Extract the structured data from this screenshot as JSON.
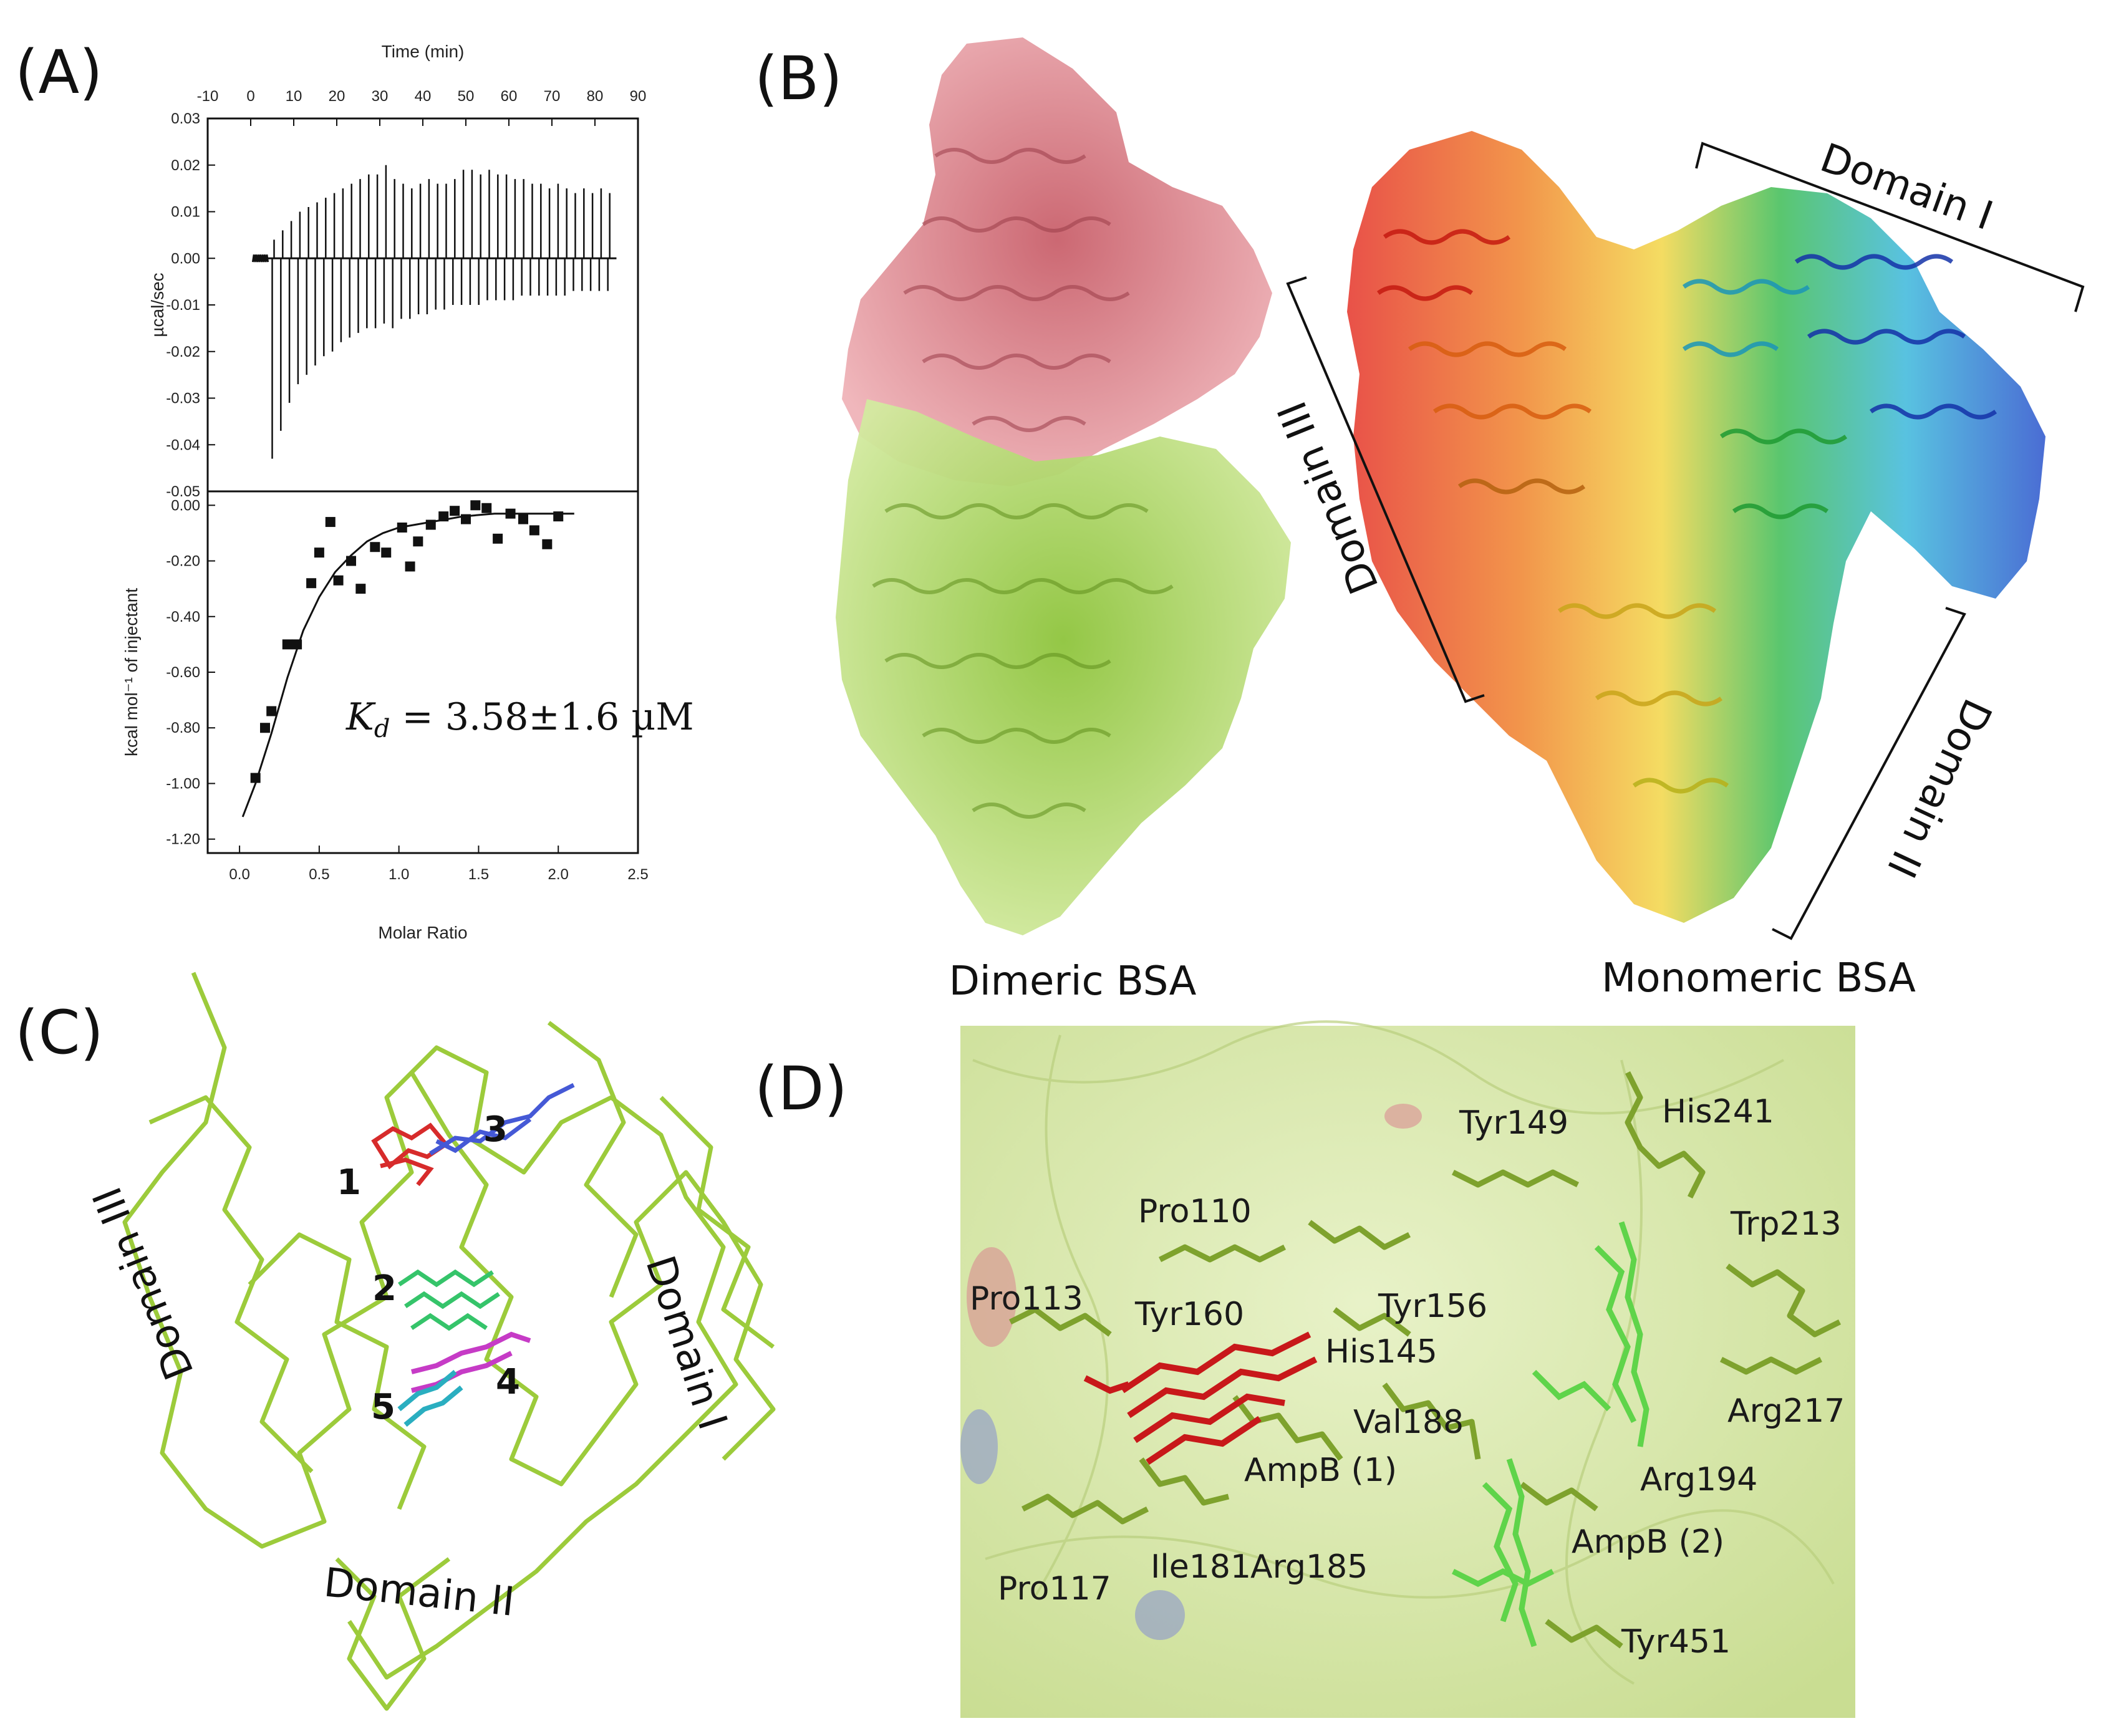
{
  "panels": {
    "a": {
      "label": "(A)"
    },
    "b": {
      "label": "(B)"
    },
    "c": {
      "label": "(C)"
    },
    "d": {
      "label": "(D)"
    }
  },
  "chart_data": [
    {
      "type": "line",
      "panel": "A-top",
      "xlabel": "Time (min)",
      "ylabel": "µcal/sec",
      "xlim": [
        -10,
        90
      ],
      "ylim": [
        -0.05,
        0.03
      ],
      "x_ticks": [
        "-10",
        "0",
        "10",
        "20",
        "30",
        "40",
        "50",
        "60",
        "70",
        "80",
        "90"
      ],
      "y_ticks": [
        "0.03",
        "0.02",
        "0.01",
        "0.00",
        "-0.01",
        "-0.02",
        "-0.03",
        "-0.04",
        "-0.05"
      ],
      "injections": {
        "time": [
          5,
          7,
          9,
          11,
          13,
          15,
          17,
          19,
          21,
          23,
          25,
          27,
          29,
          31,
          33,
          35,
          37,
          39,
          41,
          43,
          45,
          47,
          49,
          51,
          53,
          55,
          57,
          59,
          61,
          63,
          65,
          67,
          69,
          71,
          73,
          75,
          77,
          79,
          81,
          83
        ],
        "peak_down": [
          -0.043,
          -0.037,
          -0.031,
          -0.027,
          -0.025,
          -0.023,
          -0.021,
          -0.02,
          -0.018,
          -0.017,
          -0.016,
          -0.015,
          -0.015,
          -0.014,
          -0.015,
          -0.013,
          -0.013,
          -0.012,
          -0.012,
          -0.011,
          -0.011,
          -0.01,
          -0.01,
          -0.01,
          -0.01,
          -0.009,
          -0.009,
          -0.009,
          -0.009,
          -0.008,
          -0.008,
          -0.008,
          -0.008,
          -0.008,
          -0.008,
          -0.007,
          -0.007,
          -0.007,
          -0.007,
          -0.007
        ],
        "peak_up": [
          0.004,
          0.006,
          0.008,
          0.01,
          0.011,
          0.012,
          0.013,
          0.014,
          0.015,
          0.016,
          0.017,
          0.018,
          0.018,
          0.02,
          0.017,
          0.016,
          0.015,
          0.016,
          0.017,
          0.016,
          0.016,
          0.017,
          0.019,
          0.019,
          0.018,
          0.019,
          0.018,
          0.018,
          0.017,
          0.017,
          0.016,
          0.016,
          0.015,
          0.016,
          0.015,
          0.014,
          0.015,
          0.014,
          0.015,
          0.014
        ]
      }
    },
    {
      "type": "scatter",
      "panel": "A-bottom",
      "xlabel": "Molar Ratio",
      "ylabel": "kcal mol⁻¹ of injectant",
      "xlim": [
        -0.2,
        2.5
      ],
      "ylim": [
        -1.25,
        0.05
      ],
      "x_ticks": [
        "0.0",
        "0.5",
        "1.0",
        "1.5",
        "2.0",
        "2.5"
      ],
      "y_ticks": [
        "0.00",
        "-0.20",
        "-0.40",
        "-0.60",
        "-0.80",
        "-1.00",
        "-1.20"
      ],
      "points": {
        "x": [
          0.1,
          0.16,
          0.2,
          0.3,
          0.36,
          0.45,
          0.5,
          0.57,
          0.62,
          0.7,
          0.76,
          0.85,
          0.92,
          1.02,
          1.07,
          1.12,
          1.2,
          1.28,
          1.35,
          1.42,
          1.48,
          1.55,
          1.62,
          1.7,
          1.78,
          1.85,
          1.93,
          2.0
        ],
        "y": [
          -0.98,
          -0.8,
          -0.74,
          -0.5,
          -0.5,
          -0.28,
          -0.17,
          -0.06,
          -0.27,
          -0.2,
          -0.3,
          -0.15,
          -0.17,
          -0.08,
          -0.22,
          -0.13,
          -0.07,
          -0.04,
          -0.02,
          -0.05,
          0.0,
          -0.01,
          -0.12,
          -0.03,
          -0.05,
          -0.09,
          -0.14,
          -0.04
        ]
      },
      "fit": {
        "x": [
          0.02,
          0.1,
          0.2,
          0.3,
          0.4,
          0.5,
          0.6,
          0.7,
          0.8,
          0.9,
          1.0,
          1.2,
          1.4,
          1.6,
          1.8,
          2.0,
          2.1
        ],
        "y": [
          -1.12,
          -1.0,
          -0.82,
          -0.62,
          -0.45,
          -0.33,
          -0.24,
          -0.18,
          -0.13,
          -0.1,
          -0.08,
          -0.06,
          -0.04,
          -0.03,
          -0.03,
          -0.03,
          -0.03
        ]
      },
      "annotation": {
        "symbol": "K",
        "subscript": "d",
        "text": " = 3.58±1.6 µM"
      }
    }
  ],
  "panel_b": {
    "dimeric_label": "Dimeric BSA",
    "monomeric_label": "Monomeric BSA",
    "domain_1": "Domain I",
    "domain_2": "Domain II",
    "domain_3": "Domain III",
    "colors": {
      "dimer_top": "#d9808a",
      "dimer_bottom": "#a8d257",
      "rainbow": [
        "#e3261b",
        "#ef7b1e",
        "#f2d33b",
        "#31b84a",
        "#2fb3d9",
        "#1d48c9"
      ]
    }
  },
  "panel_c": {
    "domain_1": "Domain I",
    "domain_2": "Domain II",
    "domain_3": "Domain III",
    "sites": [
      "1",
      "2",
      "3",
      "4",
      "5"
    ],
    "colors": {
      "backbone": "#9ccb3b",
      "site1": "#d72b2b",
      "site2": "#35c46a",
      "site3": "#4559d6",
      "site4": "#c63bc6",
      "site5": "#2aaec0"
    }
  },
  "panel_d": {
    "residues": [
      "Tyr149",
      "His241",
      "Pro110",
      "Trp213",
      "Tyr156",
      "Pro113",
      "Tyr160",
      "His145",
      "Arg217",
      "Val188",
      "AmpB (1)",
      "Arg194",
      "AmpB (2)",
      "Pro117",
      "Ile181",
      "Arg185",
      "Tyr451"
    ],
    "colors": {
      "surface": "#dbe9b2",
      "sticks": "#8fb83a",
      "ligand1": "#c8181a",
      "ligand2": "#5fd44a"
    }
  }
}
